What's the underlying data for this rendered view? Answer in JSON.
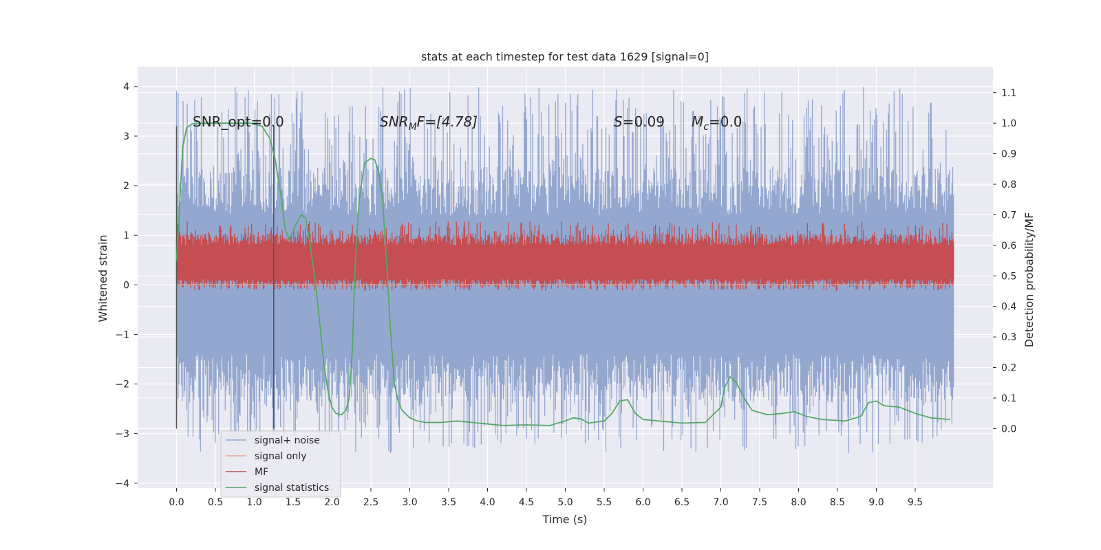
{
  "chart_data": {
    "type": "line",
    "title": "stats at each timestep for test data 1629 [signal=0]",
    "xlabel": "Time (s)",
    "ylabel": "Whitened strain",
    "y2label": "Detection probability/MF",
    "xlim": [
      -0.5,
      10.5
    ],
    "ylim": [
      -4.1,
      4.4
    ],
    "y2lim": [
      -0.195,
      1.185
    ],
    "xticks": [
      0.0,
      0.5,
      1.0,
      1.5,
      2.0,
      2.5,
      3.0,
      3.5,
      4.0,
      4.5,
      5.0,
      5.5,
      6.0,
      6.5,
      7.0,
      7.5,
      8.0,
      8.5,
      9.0,
      9.5
    ],
    "xtick_labels": [
      "0.0",
      "0.5",
      "1.0",
      "1.5",
      "2.0",
      "2.5",
      "3.0",
      "3.5",
      "4.0",
      "4.5",
      "5.0",
      "5.5",
      "6.0",
      "6.5",
      "7.0",
      "7.5",
      "8.0",
      "8.5",
      "9.0",
      "9.5"
    ],
    "yticks": [
      -4,
      -3,
      -2,
      -1,
      0,
      1,
      2,
      3,
      4
    ],
    "ytick_labels": [
      "−4",
      "−3",
      "−2",
      "−1",
      "0",
      "1",
      "2",
      "3",
      "4"
    ],
    "y2ticks": [
      0.0,
      0.1,
      0.2,
      0.3,
      0.4,
      0.5,
      0.6,
      0.7,
      0.8,
      0.9,
      1.0,
      1.1
    ],
    "y2tick_labels": [
      "0.0",
      "0.1",
      "0.2",
      "0.3",
      "0.4",
      "0.5",
      "0.6",
      "0.7",
      "0.8",
      "0.9",
      "1.0",
      "1.1"
    ],
    "grid": true,
    "legend_position": "lower-left",
    "annotations": [
      {
        "text": "SNR_opt=0.0",
        "x": 0.2,
        "y": 3.2
      },
      {
        "text": "SNR_MF=[4.78]",
        "x": 2.6,
        "y": 3.2
      },
      {
        "text": "S=0.09",
        "x": 5.6,
        "y": 3.2
      },
      {
        "text": "M_c=0.0",
        "x": 6.6,
        "y": 3.2
      }
    ],
    "annotation_parts": {
      "snr_opt": "SNR_opt=0.0",
      "snr_mf_main": "SNR",
      "snr_mf_sub": "M",
      "snr_mf_rest": "F=[4.78]",
      "s_sym": "S",
      "s_rest": "=0.09",
      "mc_main": "M",
      "mc_sub": "c",
      "mc_rest": "=0.0"
    },
    "vertical_markers": [
      {
        "x": 0.0,
        "y_range": [
          -2.9,
          3.2
        ]
      },
      {
        "x": 1.25,
        "y_range": [
          -2.9,
          3.2
        ]
      }
    ],
    "series": [
      {
        "name": "signal+ noise",
        "color": "#8fa3cc",
        "axis": "left",
        "kind": "noise",
        "x_range": [
          0.0,
          10.0
        ],
        "band": [
          -1.4,
          1.4
        ],
        "peak_range": [
          -3.4,
          4.0
        ]
      },
      {
        "name": "signal only",
        "color": "#e8a58f",
        "axis": "left",
        "x": [
          0.0,
          10.0
        ],
        "y": [
          0.0,
          0.0
        ]
      },
      {
        "name": "MF",
        "color": "#c44e52",
        "axis": "right",
        "kind": "noise",
        "x_range": [
          0.0,
          10.0
        ],
        "band": [
          0.49,
          0.6
        ],
        "peak_range": [
          0.47,
          0.68
        ]
      },
      {
        "name": "signal statistics",
        "color": "#55a868",
        "axis": "right",
        "x": [
          0.0,
          0.08,
          0.13,
          0.2,
          0.35,
          0.55,
          0.75,
          0.95,
          1.1,
          1.2,
          1.27,
          1.35,
          1.4,
          1.45,
          1.52,
          1.6,
          1.66,
          1.72,
          1.8,
          1.9,
          1.95,
          2.0,
          2.05,
          2.12,
          2.18,
          2.22,
          2.26,
          2.3,
          2.35,
          2.42,
          2.5,
          2.55,
          2.6,
          2.65,
          2.7,
          2.75,
          2.8,
          2.85,
          2.9,
          3.0,
          3.1,
          3.2,
          3.4,
          3.6,
          3.8,
          4.0,
          4.2,
          4.5,
          4.8,
          5.0,
          5.1,
          5.2,
          5.3,
          5.5,
          5.6,
          5.7,
          5.8,
          5.9,
          6.0,
          6.2,
          6.5,
          6.8,
          7.0,
          7.05,
          7.12,
          7.2,
          7.3,
          7.4,
          7.6,
          7.8,
          7.95,
          8.1,
          8.3,
          8.6,
          8.8,
          8.9,
          9.0,
          9.1,
          9.3,
          9.5,
          9.7,
          9.95
        ],
        "y": [
          0.55,
          0.92,
          0.985,
          0.998,
          1.0,
          1.0,
          1.0,
          1.0,
          0.99,
          0.95,
          0.88,
          0.75,
          0.65,
          0.62,
          0.66,
          0.7,
          0.69,
          0.6,
          0.45,
          0.2,
          0.12,
          0.07,
          0.05,
          0.045,
          0.06,
          0.1,
          0.25,
          0.55,
          0.75,
          0.87,
          0.885,
          0.88,
          0.84,
          0.75,
          0.55,
          0.33,
          0.15,
          0.09,
          0.06,
          0.035,
          0.025,
          0.02,
          0.02,
          0.025,
          0.02,
          0.015,
          0.01,
          0.012,
          0.01,
          0.025,
          0.035,
          0.032,
          0.018,
          0.025,
          0.05,
          0.09,
          0.095,
          0.05,
          0.03,
          0.025,
          0.018,
          0.02,
          0.07,
          0.135,
          0.17,
          0.15,
          0.1,
          0.06,
          0.045,
          0.05,
          0.055,
          0.04,
          0.03,
          0.025,
          0.04,
          0.085,
          0.09,
          0.075,
          0.07,
          0.05,
          0.035,
          0.03
        ]
      }
    ]
  }
}
